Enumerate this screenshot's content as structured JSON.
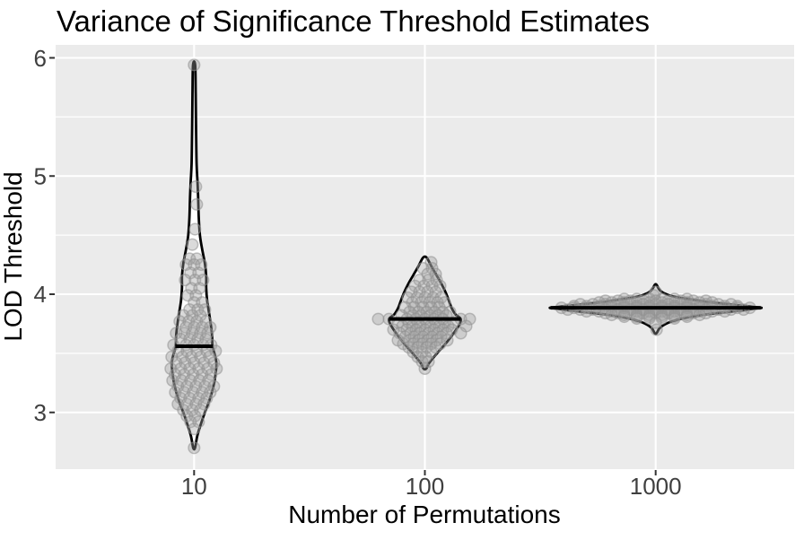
{
  "chart_data": {
    "type": "violin",
    "title": "Variance of Significance Threshold Estimates",
    "xlabel": "Number of Permutations",
    "ylabel": "LOD Threshold",
    "categories": [
      "10",
      "100",
      "1000"
    ],
    "ylim": [
      2.52,
      6.11
    ],
    "yticks": [
      "6",
      "5",
      "4",
      "3"
    ],
    "ytick_values": [
      3,
      4,
      5,
      6
    ],
    "yminor_values": [
      3.5,
      4.5,
      5.5
    ],
    "grid": true,
    "legend_position": "none",
    "panel_bg": "#EBEBEB",
    "grid_color": "#FFFFFF",
    "violin_fill": "#FFFFFF",
    "violin_stroke": "#000000",
    "median_color": "#000000",
    "point_fill": "#9e9e9e",
    "point_stroke": "#8f8f8f",
    "groups": [
      {
        "category": "10",
        "median": 3.56,
        "min": 2.7,
        "max": 5.94,
        "median_halfwidth": 21,
        "profile": [
          [
            5.94,
            1.2
          ],
          [
            5.7,
            1.8
          ],
          [
            5.4,
            2.2
          ],
          [
            5.1,
            2.8
          ],
          [
            4.95,
            3.8
          ],
          [
            4.8,
            4.6
          ],
          [
            4.65,
            5.2
          ],
          [
            4.5,
            6.5
          ],
          [
            4.38,
            9
          ],
          [
            4.26,
            12
          ],
          [
            4.15,
            13.5
          ],
          [
            4.05,
            13.5
          ],
          [
            3.95,
            14.5
          ],
          [
            3.85,
            16.5
          ],
          [
            3.75,
            18.5
          ],
          [
            3.65,
            20
          ],
          [
            3.56,
            20.5
          ],
          [
            3.49,
            23
          ],
          [
            3.42,
            24.8
          ],
          [
            3.33,
            24
          ],
          [
            3.22,
            21.5
          ],
          [
            3.1,
            17
          ],
          [
            3.0,
            12
          ],
          [
            2.9,
            7.5
          ],
          [
            2.8,
            3.5
          ],
          [
            2.7,
            1
          ]
        ],
        "point_rows": [
          [
            5.94,
            [
              0
            ]
          ],
          [
            4.91,
            [
              2
            ]
          ],
          [
            4.76,
            [
              3
            ]
          ],
          [
            4.55,
            [
              1
            ]
          ],
          [
            4.42,
            [
              -2
            ]
          ],
          [
            4.3,
            [
              -5,
              3
            ]
          ],
          [
            4.25,
            [
              -9,
              0,
              8
            ]
          ],
          [
            4.18,
            [
              -4,
              5
            ]
          ],
          [
            4.12,
            [
              -10,
              1,
              10
            ]
          ],
          [
            4.05,
            [
              -3,
              6
            ]
          ],
          [
            3.99,
            [
              -7,
              2
            ]
          ],
          [
            3.93,
            [
              0,
              9
            ]
          ],
          [
            3.87,
            [
              -5,
              4,
              12
            ]
          ],
          [
            3.82,
            [
              -12,
              -2,
              7
            ]
          ],
          [
            3.77,
            [
              -16,
              -6,
              3,
              13
            ]
          ],
          [
            3.72,
            [
              -9,
              0,
              9,
              18
            ]
          ],
          [
            3.67,
            [
              -20,
              -11,
              -2,
              7,
              15
            ]
          ],
          [
            3.62,
            [
              -15,
              -5,
              4,
              13
            ]
          ],
          [
            3.57,
            [
              -23,
              -9,
              0,
              10,
              19
            ]
          ],
          [
            3.52,
            [
              -18,
              -8,
              3,
              14,
              24
            ]
          ],
          [
            3.47,
            [
              -25,
              -13,
              -3,
              7,
              17
            ]
          ],
          [
            3.42,
            [
              -20,
              -10,
              0,
              11,
              22
            ]
          ],
          [
            3.37,
            [
              -26,
              -15,
              -5,
              5,
              15,
              25
            ]
          ],
          [
            3.32,
            [
              -21,
              -11,
              -1,
              9,
              19
            ]
          ],
          [
            3.27,
            [
              -24,
              -14,
              -4,
              6,
              16
            ]
          ],
          [
            3.22,
            [
              -18,
              -8,
              2,
              12,
              22
            ]
          ],
          [
            3.17,
            [
              -21,
              -11,
              -1,
              9,
              18
            ]
          ],
          [
            3.12,
            [
              -15,
              -5,
              5,
              14
            ]
          ],
          [
            3.07,
            [
              -18,
              -8,
              2,
              11
            ]
          ],
          [
            3.02,
            [
              -12,
              -2,
              7
            ]
          ],
          [
            2.97,
            [
              -8,
              1
            ]
          ],
          [
            2.92,
            [
              -4,
              5
            ]
          ],
          [
            2.86,
            [
              0
            ]
          ],
          [
            2.7,
            [
              0
            ]
          ]
        ]
      },
      {
        "category": "100",
        "median": 3.79,
        "min": 3.37,
        "max": 4.31,
        "median_halfwidth": 40,
        "profile": [
          [
            4.31,
            2
          ],
          [
            4.24,
            7
          ],
          [
            4.16,
            13
          ],
          [
            4.08,
            19
          ],
          [
            4.0,
            24
          ],
          [
            3.94,
            27
          ],
          [
            3.88,
            30
          ],
          [
            3.83,
            34
          ],
          [
            3.79,
            40
          ],
          [
            3.74,
            38
          ],
          [
            3.68,
            33
          ],
          [
            3.6,
            25
          ],
          [
            3.53,
            17
          ],
          [
            3.46,
            9
          ],
          [
            3.41,
            4
          ],
          [
            3.37,
            1.5
          ]
        ],
        "point_rows": [
          [
            4.27,
            [
              7
            ]
          ],
          [
            4.22,
            [
              -2,
              8
            ]
          ],
          [
            4.17,
            [
              3,
              12
            ]
          ],
          [
            4.12,
            [
              -6,
              4,
              13
            ]
          ],
          [
            4.07,
            [
              -11,
              -1,
              8,
              17
            ]
          ],
          [
            4.02,
            [
              -15,
              -6,
              3,
              12
            ]
          ],
          [
            3.97,
            [
              -19,
              -9,
              0,
              9,
              18
            ]
          ],
          [
            3.93,
            [
              -14,
              -4,
              5,
              14,
              22
            ]
          ],
          [
            3.89,
            [
              -22,
              -12,
              -2,
              7,
              16
            ]
          ],
          [
            3.85,
            [
              -17,
              -7,
              2,
              11,
              20,
              28
            ]
          ],
          [
            3.82,
            [
              -26,
              -13,
              -4,
              6,
              15,
              24
            ]
          ],
          [
            3.79,
            [
              -52,
              -40,
              -20,
              -10,
              0,
              10,
              20,
              40,
              50
            ]
          ],
          [
            3.76,
            [
              -30,
              -18,
              -8,
              2,
              12,
              22,
              32
            ]
          ],
          [
            3.73,
            [
              -25,
              -14,
              -5,
              6,
              16,
              26,
              46
            ]
          ],
          [
            3.7,
            [
              -35,
              -20,
              -10,
              0,
              10,
              20,
              30
            ]
          ],
          [
            3.67,
            [
              -28,
              -16,
              -6,
              4,
              14,
              24,
              40
            ]
          ],
          [
            3.64,
            [
              -22,
              -12,
              -2,
              8,
              18
            ]
          ],
          [
            3.61,
            [
              -30,
              -17,
              -7,
              3,
              13,
              25
            ]
          ],
          [
            3.58,
            [
              -24,
              -13,
              -3,
              7,
              17
            ]
          ],
          [
            3.55,
            [
              -18,
              -8,
              2,
              12
            ]
          ],
          [
            3.51,
            [
              -13,
              -3,
              7
            ]
          ],
          [
            3.47,
            [
              -8,
              1
            ]
          ],
          [
            3.43,
            [
              -3,
              4
            ]
          ],
          [
            3.37,
            [
              0
            ]
          ]
        ]
      },
      {
        "category": "1000",
        "median": 3.885,
        "min": 3.67,
        "max": 4.08,
        "median_halfwidth": 117,
        "profile": [
          [
            4.08,
            1
          ],
          [
            4.04,
            4
          ],
          [
            4.01,
            9
          ],
          [
            3.98,
            20
          ],
          [
            3.955,
            40
          ],
          [
            3.93,
            62
          ],
          [
            3.915,
            82
          ],
          [
            3.9,
            100
          ],
          [
            3.89,
            112
          ],
          [
            3.885,
            118
          ],
          [
            3.88,
            112
          ],
          [
            3.865,
            98
          ],
          [
            3.85,
            80
          ],
          [
            3.835,
            62
          ],
          [
            3.82,
            48
          ],
          [
            3.8,
            32
          ],
          [
            3.77,
            18
          ],
          [
            3.74,
            9
          ],
          [
            3.71,
            4
          ],
          [
            3.67,
            1
          ]
        ],
        "point_rows": [
          [
            4.02,
            [
              0
            ]
          ],
          [
            3.99,
            [
              -2
            ]
          ],
          [
            3.96,
            [
              -35,
              -21,
              -7,
              7,
              21,
              35
            ]
          ],
          [
            3.945,
            [
              -56,
              -42,
              -28,
              -14,
              0,
              14,
              28,
              42,
              56
            ]
          ],
          [
            3.93,
            [
              -63,
              -49,
              -35,
              -21,
              -7,
              7,
              21,
              35,
              49,
              63
            ]
          ],
          [
            3.915,
            [
              -84,
              -70,
              -56,
              -42,
              -28,
              -14,
              0,
              14,
              28,
              42,
              56,
              70,
              84
            ]
          ],
          [
            3.9,
            [
              -91,
              -77,
              -63,
              -49,
              -35,
              -21,
              -7,
              7,
              21,
              35,
              49,
              63,
              77,
              91
            ]
          ],
          [
            3.885,
            [
              -105,
              -91,
              -77,
              -63,
              -49,
              -35,
              -21,
              -7,
              7,
              21,
              35,
              49,
              63,
              77,
              91,
              105
            ]
          ],
          [
            3.87,
            [
              -98,
              -84,
              -70,
              -56,
              -42,
              -28,
              -14,
              0,
              14,
              28,
              42,
              56,
              70,
              84,
              98
            ]
          ],
          [
            3.855,
            [
              -77,
              -63,
              -49,
              -35,
              -21,
              -7,
              7,
              21,
              35,
              49,
              63,
              77
            ]
          ],
          [
            3.84,
            [
              -56,
              -42,
              -28,
              -14,
              0,
              14,
              28,
              42,
              56
            ]
          ],
          [
            3.825,
            [
              -49,
              -35,
              -21,
              -7,
              7,
              21,
              35,
              49
            ]
          ],
          [
            3.81,
            [
              -35,
              -21,
              -7,
              7,
              21,
              35
            ]
          ],
          [
            3.795,
            [
              -21,
              -7,
              7,
              21
            ]
          ],
          [
            3.76,
            [
              0
            ]
          ],
          [
            3.7,
            [
              1
            ]
          ]
        ]
      }
    ]
  }
}
